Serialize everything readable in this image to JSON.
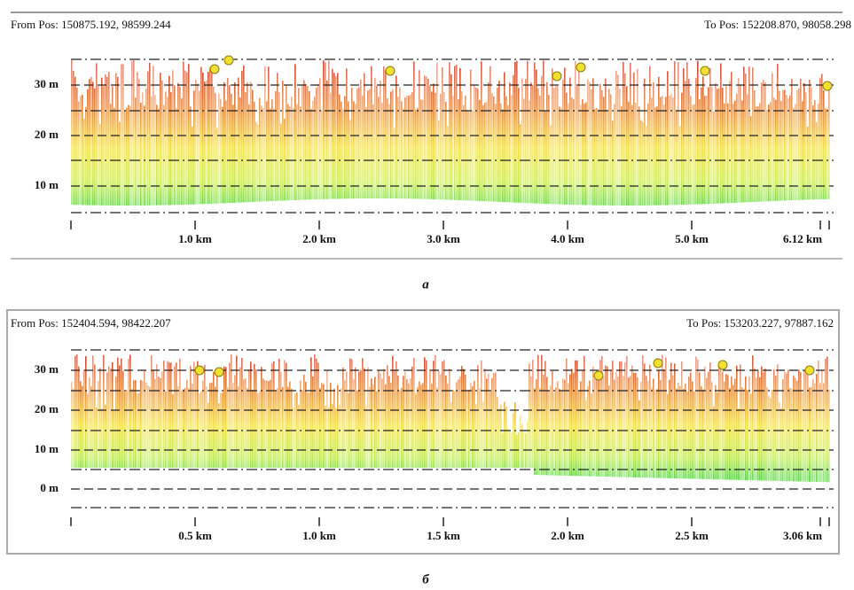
{
  "panels": [
    {
      "from_pos": "From Pos: 150875.192, 98599.244",
      "to_pos": "To Pos: 152208.870, 98058.298",
      "y_labels": [
        "30 m",
        "20 m",
        "10 m"
      ],
      "x_labels": [
        "1.0 km",
        "2.0 km",
        "3.0 km",
        "4.0 km",
        "5.0 km",
        "6.12 km"
      ],
      "caption": "а"
    },
    {
      "from_pos": "From Pos: 152404.594, 98422.207",
      "to_pos": "To Pos: 153203.227, 97887.162",
      "y_labels": [
        "30 m",
        "20 m",
        "10 m",
        "0 m"
      ],
      "x_labels": [
        "0.5 km",
        "1.0 km",
        "1.5 km",
        "2.0 km",
        "2.5 km",
        "3.06 km"
      ],
      "caption": "б"
    }
  ]
}
